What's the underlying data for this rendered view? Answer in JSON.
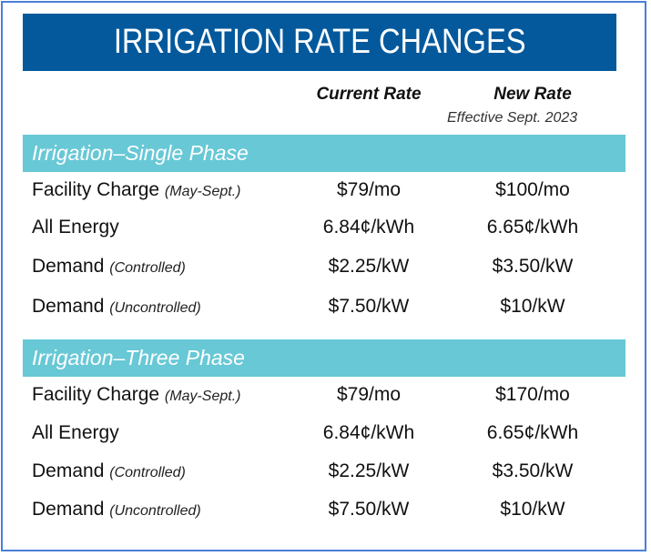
{
  "title": "IRRIGATION RATE CHANGES",
  "columns": {
    "current": "Current Rate",
    "new": "New Rate",
    "new_sub": "Effective Sept. 2023"
  },
  "sections": [
    {
      "name": "Irrigation–Single Phase",
      "rows": [
        {
          "label": "Facility Charge",
          "note": "(May-Sept.)",
          "current": "$79/mo",
          "new": "$100/mo"
        },
        {
          "label": "All Energy",
          "note": "",
          "current": "6.84¢/kWh",
          "new": "6.65¢/kWh"
        },
        {
          "label": "Demand",
          "note": "(Controlled)",
          "current": "$2.25/kW",
          "new": "$3.50/kW"
        },
        {
          "label": "Demand",
          "note": "(Uncontrolled)",
          "current": "$7.50/kW",
          "new": "$10/kW"
        }
      ]
    },
    {
      "name": "Irrigation–Three Phase",
      "rows": [
        {
          "label": "Facility Charge",
          "note": "(May-Sept.)",
          "current": "$79/mo",
          "new": "$170/mo"
        },
        {
          "label": "All Energy",
          "note": "",
          "current": "6.84¢/kWh",
          "new": "6.65¢/kWh"
        },
        {
          "label": "Demand",
          "note": "(Controlled)",
          "current": "$2.25/kW",
          "new": "$3.50/kW"
        },
        {
          "label": "Demand",
          "note": "(Uncontrolled)",
          "current": "$7.50/kW",
          "new": "$10/kW"
        }
      ]
    }
  ],
  "colors": {
    "title_bg": "#03599c",
    "band_bg": "#68c8d6",
    "border": "#4a7fd6"
  }
}
